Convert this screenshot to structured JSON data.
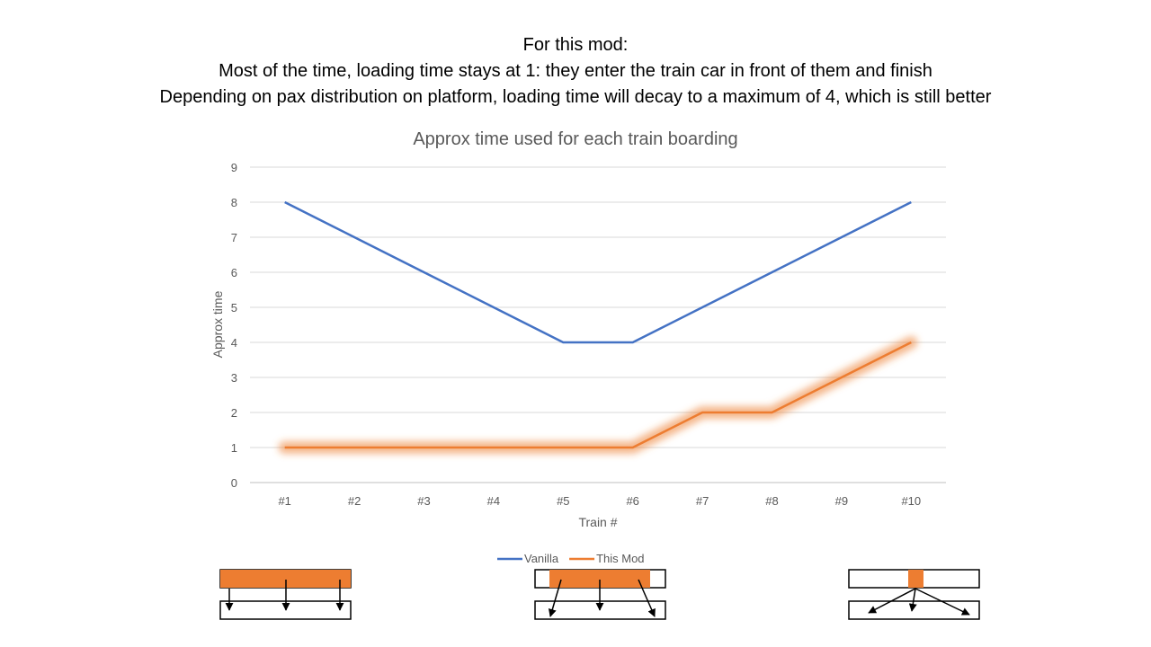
{
  "header": {
    "line1": "For this mod:",
    "line2": "Most of the time, loading time stays at 1: they enter the train car in front of them and finish",
    "line3": "Depending on pax distribution on platform, loading time will decay to a maximum of 4, which is still better"
  },
  "chart_data": {
    "type": "line",
    "title": "Approx time used for each train boarding",
    "xlabel": "Train #",
    "ylabel": "Approx time",
    "categories": [
      "#1",
      "#2",
      "#3",
      "#4",
      "#5",
      "#6",
      "#7",
      "#8",
      "#9",
      "#10"
    ],
    "ylim": [
      0,
      9
    ],
    "yticks": [
      0,
      1,
      2,
      3,
      4,
      5,
      6,
      7,
      8,
      9
    ],
    "grid": true,
    "legend_position": "bottom",
    "series": [
      {
        "name": "Vanilla",
        "color": "#4472C4",
        "values": [
          8,
          7,
          6,
          5,
          4,
          4,
          5,
          6,
          7,
          8
        ]
      },
      {
        "name": "This Mod",
        "color": "#ED7D31",
        "glow": true,
        "values": [
          1,
          1,
          1,
          1,
          1,
          1,
          2,
          2,
          3,
          4
        ]
      }
    ]
  },
  "diagrams": {
    "fill_color": "#ED7D31",
    "items": [
      {
        "name": "full-width-boarding",
        "fill": "full"
      },
      {
        "name": "partial-width-boarding",
        "fill": "partial"
      },
      {
        "name": "narrow-boarding",
        "fill": "narrow"
      }
    ]
  }
}
